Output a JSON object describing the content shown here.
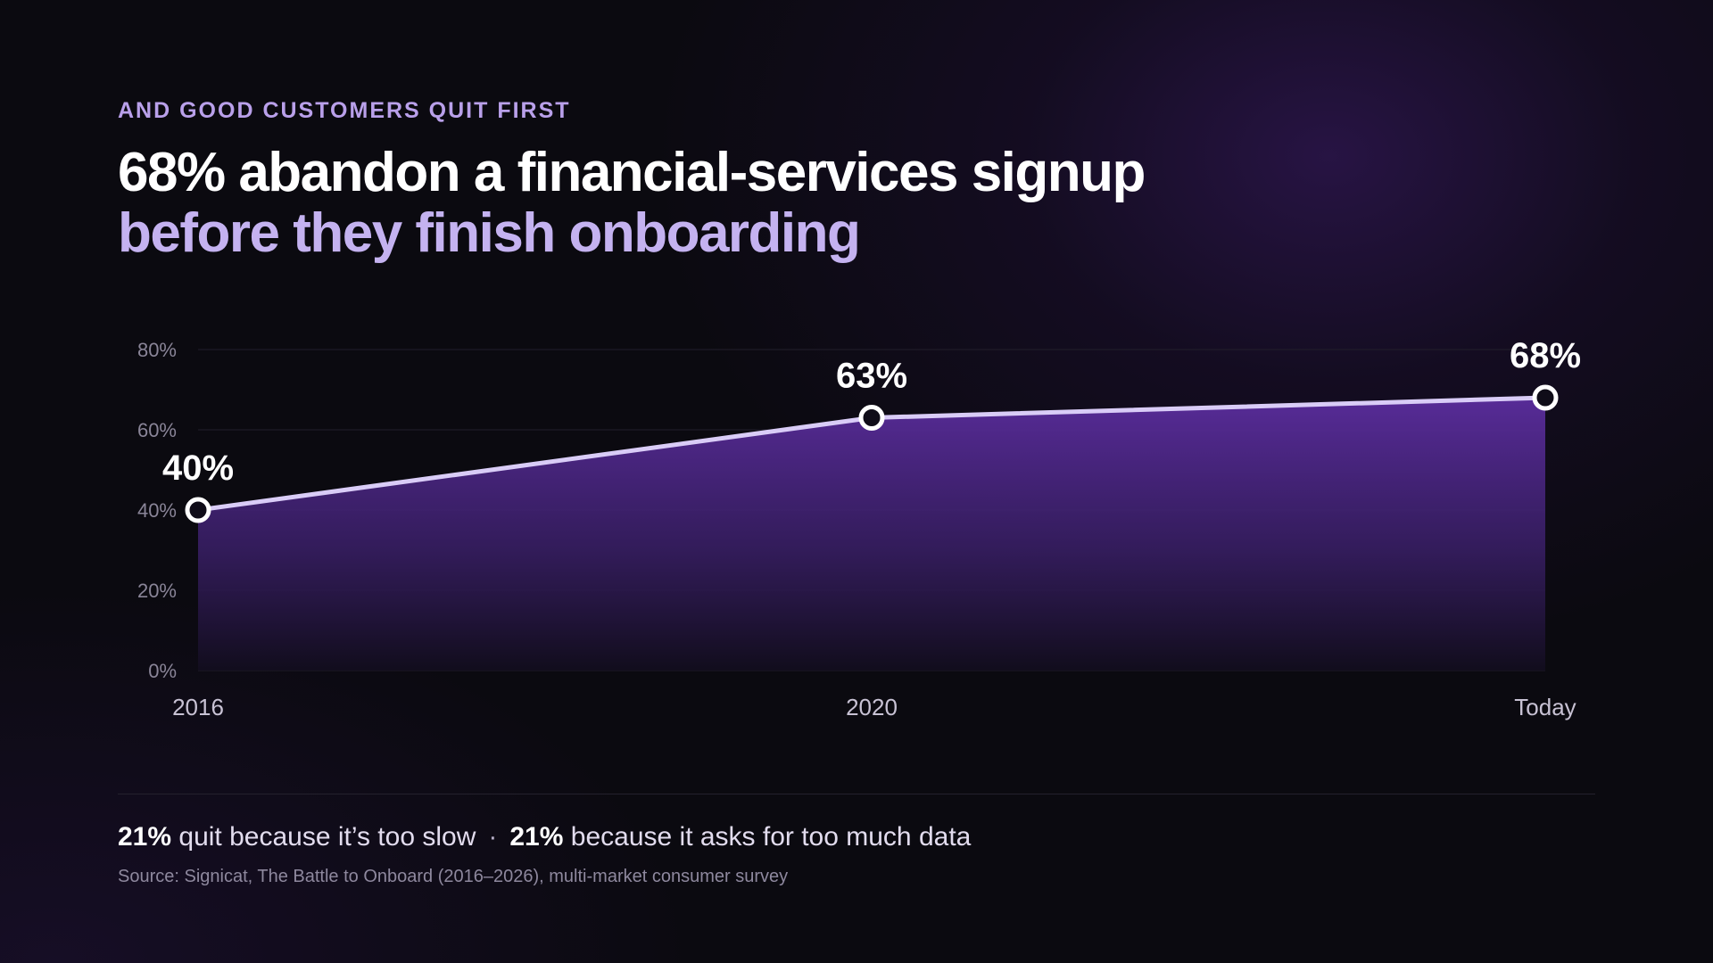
{
  "eyebrow": "AND GOOD CUSTOMERS QUIT FIRST",
  "headline": {
    "line1": "68% abandon a financial-services signup",
    "line2": "before they finish onboarding"
  },
  "chart_data": {
    "type": "area",
    "categories": [
      "2016",
      "2020",
      "Today"
    ],
    "series": [
      {
        "values": [
          40,
          63,
          68
        ]
      }
    ],
    "data_labels": [
      "40%",
      "63%",
      "68%"
    ],
    "y_ticks": [
      0,
      20,
      40,
      60,
      80
    ],
    "y_tick_labels": [
      "0%",
      "20%",
      "40%",
      "60%",
      "80%"
    ],
    "ylim": [
      0,
      80
    ],
    "grid": true,
    "title": "",
    "xlabel": "",
    "ylabel": "",
    "colors": {
      "line": "#d9ccf7",
      "fill_top": "#5b2d9e",
      "fill_bottom": "#120d1e",
      "marker_fill": "#ffffff"
    }
  },
  "footnote": {
    "stat1": "21%",
    "text1": "quit because it’s too slow",
    "separator": "·",
    "stat2": "21%",
    "text2": "because it asks for too much data"
  },
  "source": "Source: Signicat, The Battle to Onboard (2016–2026), multi-market consumer survey"
}
